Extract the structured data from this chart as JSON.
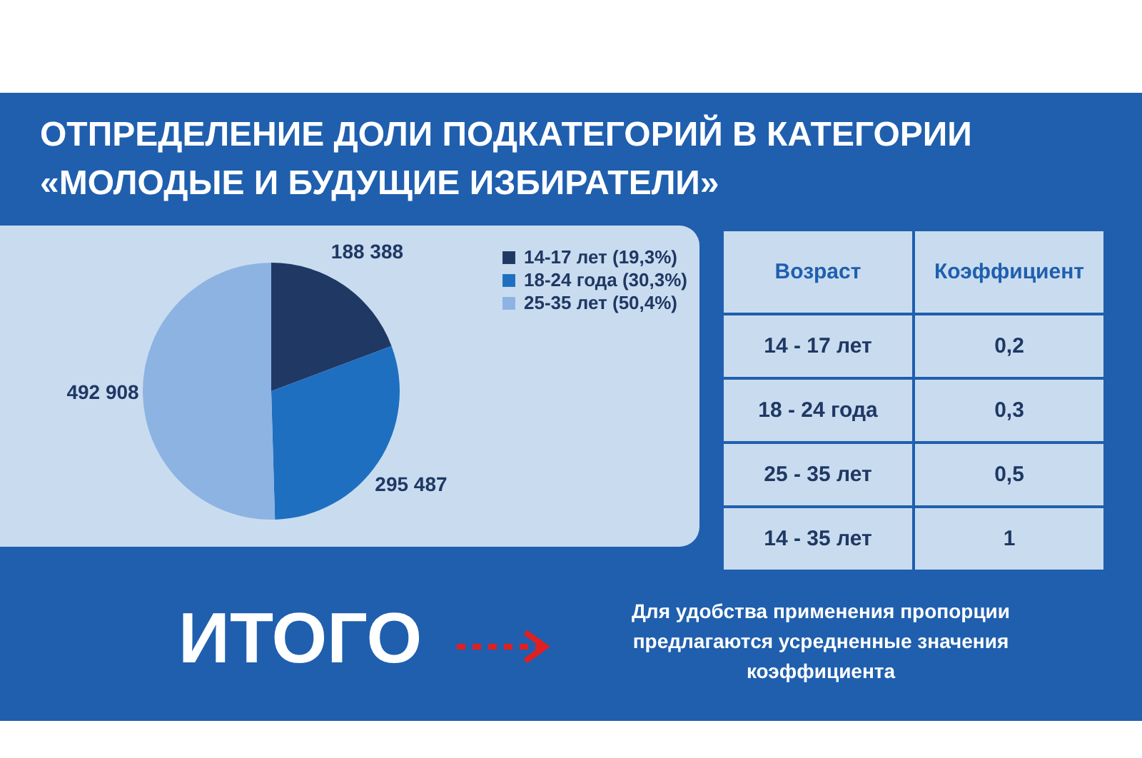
{
  "chart_data": {
    "type": "pie",
    "title": "ОТПРЕДЕЛЕНИЕ  ДОЛИ ПОДКАТЕГОРИЙ В КАТЕГОРИИ «МОЛОДЫЕ И БУДУЩИЕ ИЗБИРАТЕЛИ»",
    "categories": [
      "14-17 лет (19,3%)",
      "18-24 года (30,3%)",
      "25-35 лет (50,4%)"
    ],
    "values": [
      188388,
      295487,
      492908
    ],
    "value_labels": [
      "188 388",
      "295 487",
      "492 908"
    ],
    "colors": [
      "#1f3864",
      "#1f6fc0",
      "#8db3e2"
    ],
    "legend": "right",
    "annotations": [
      "Возраст",
      "Коэффициент",
      "14 - 17 лет",
      "0,2",
      "18 - 24 года",
      "0,3",
      "25 - 35 лет",
      "0,5",
      "14 - 35 лет",
      "1",
      "ИТОГО",
      "Для удобства применения пропорции предлагаются усредненные значения коэффициента"
    ]
  }
}
